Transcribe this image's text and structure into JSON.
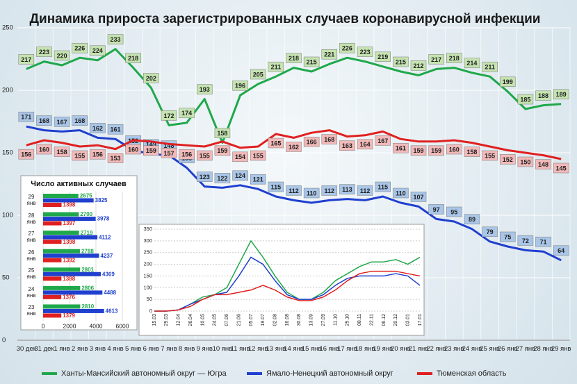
{
  "chart_data": [
    {
      "type": "line",
      "title": "Динамика прироста зарегистрированных случаев коронавирусной инфекции",
      "categories": [
        "30 дек",
        "31 дек",
        "1 янв",
        "2 янв",
        "3 янв",
        "4 янв",
        "5 янв",
        "6 янв",
        "7 янв",
        "8 янв",
        "9 янв",
        "10 янв",
        "11 янв",
        "12 янв",
        "13 янв",
        "14 янв",
        "15 янв",
        "16 янв",
        "17 янв",
        "18 янв",
        "19 янв",
        "20 янв",
        "21 янв",
        "22 янв",
        "23 янв",
        "24 янв",
        "25 янв",
        "26 янв",
        "27 янв",
        "28 янв",
        "29 янв"
      ],
      "series": [
        {
          "name": "Ханты-Мансийский автономный округ — Югра",
          "color": "#1fa84a",
          "values": [
            217,
            223,
            220,
            226,
            224,
            233,
            218,
            202,
            172,
            174,
            193,
            158,
            196,
            205,
            211,
            218,
            215,
            221,
            226,
            223,
            219,
            215,
            212,
            217,
            218,
            214,
            211,
            199,
            185,
            188,
            189
          ]
        },
        {
          "name": "Ямало-Ненецкий автономный округ",
          "color": "#1f3fcf",
          "values": [
            171,
            168,
            167,
            168,
            162,
            161,
            152,
            149,
            148,
            138,
            123,
            122,
            124,
            121,
            115,
            112,
            110,
            112,
            113,
            112,
            115,
            110,
            107,
            97,
            95,
            89,
            79,
            75,
            72,
            71,
            64
          ]
        },
        {
          "name": "Тюменская область",
          "color": "#e02020",
          "values": [
            156,
            160,
            158,
            155,
            156,
            153,
            160,
            159,
            157,
            156,
            155,
            159,
            154,
            155,
            165,
            162,
            166,
            168,
            163,
            164,
            167,
            161,
            159,
            159,
            160,
            158,
            155,
            152,
            150,
            148,
            145
          ]
        }
      ],
      "ylim": [
        0,
        250
      ],
      "yticks": [
        0,
        50,
        100,
        150,
        200,
        250
      ],
      "grid": true,
      "legend": "bottom"
    },
    {
      "type": "bar",
      "orientation": "horizontal",
      "title": "Число активных случаев",
      "categories": [
        "29 янв",
        "28 янв",
        "27 янв",
        "26 янв",
        "25 янв",
        "24 янв",
        "23 янв"
      ],
      "series": [
        {
          "color": "#1fa84a",
          "values": [
            2675,
            2700,
            2719,
            2788,
            2801,
            2806,
            2810
          ]
        },
        {
          "color": "#1f3fcf",
          "values": [
            3825,
            3978,
            4112,
            4237,
            4369,
            4488,
            4613
          ]
        },
        {
          "color": "#e02020",
          "values": [
            1398,
            1397,
            1398,
            1392,
            1388,
            1376,
            1379
          ]
        }
      ],
      "xlim": [
        0,
        6000
      ],
      "xticks": [
        0,
        2000,
        4000,
        6000
      ]
    },
    {
      "type": "line",
      "categories": [
        "15.03",
        "29.03",
        "12.04",
        "26.04",
        "10.05",
        "24.05",
        "07.06",
        "21.06",
        "05.07",
        "19.07",
        "02.08",
        "16.08",
        "30.08",
        "13.09",
        "27.09",
        "11.10",
        "25.10",
        "08.11",
        "22.11",
        "06.12",
        "20.12",
        "03.01",
        "17.01"
      ],
      "series": [
        {
          "color": "#1fa84a",
          "values": [
            0,
            0,
            5,
            30,
            60,
            70,
            100,
            200,
            300,
            230,
            150,
            80,
            50,
            50,
            80,
            130,
            160,
            190,
            210,
            210,
            220,
            200,
            230
          ]
        },
        {
          "color": "#1f3fcf",
          "values": [
            0,
            0,
            5,
            30,
            50,
            70,
            80,
            150,
            230,
            200,
            130,
            70,
            50,
            50,
            70,
            110,
            140,
            150,
            150,
            150,
            160,
            150,
            110
          ]
        },
        {
          "color": "#e02020",
          "values": [
            0,
            0,
            5,
            20,
            50,
            70,
            70,
            80,
            90,
            110,
            90,
            60,
            45,
            45,
            60,
            90,
            130,
            160,
            170,
            170,
            170,
            160,
            150
          ]
        }
      ],
      "ylim": [
        0,
        350
      ],
      "yticks": [
        0,
        50,
        100,
        150,
        200,
        250,
        300,
        350
      ],
      "grid": true
    }
  ]
}
